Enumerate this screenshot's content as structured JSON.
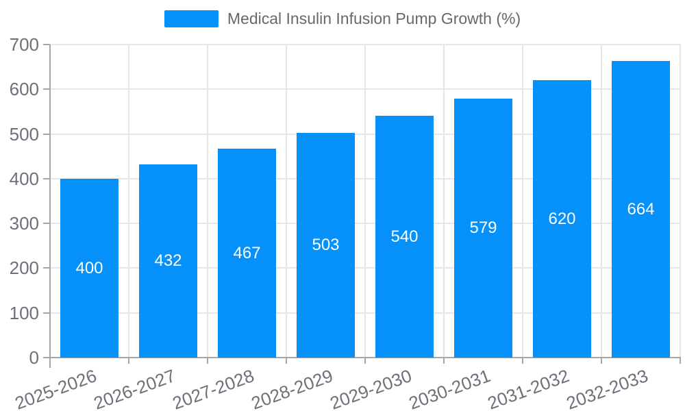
{
  "chart_data": {
    "type": "bar",
    "title": "",
    "xlabel": "",
    "ylabel": "",
    "legend": {
      "label": "Medical Insulin Infusion Pump Growth (%)",
      "position": "top-center"
    },
    "categories": [
      "2025-2026",
      "2026-2027",
      "2027-2028",
      "2028-2029",
      "2029-2030",
      "2030-2031",
      "2031-2032",
      "2032-2033"
    ],
    "values": [
      400,
      432,
      467,
      503,
      540,
      579,
      620,
      664
    ],
    "value_labels": [
      "400",
      "432",
      "467",
      "503",
      "540",
      "579",
      "620",
      "664"
    ],
    "ylim": [
      0,
      700
    ],
    "yticks": [
      0,
      100,
      200,
      300,
      400,
      500,
      600,
      700
    ],
    "grid": true,
    "colors": {
      "bar": "#0691fa",
      "value_label": "#ffffff",
      "axis_label": "#6e7079",
      "legend_text": "#65696d",
      "gridline": "#e4e6ea",
      "axis_line": "#a3a6ab",
      "background": "#ffffff"
    }
  }
}
